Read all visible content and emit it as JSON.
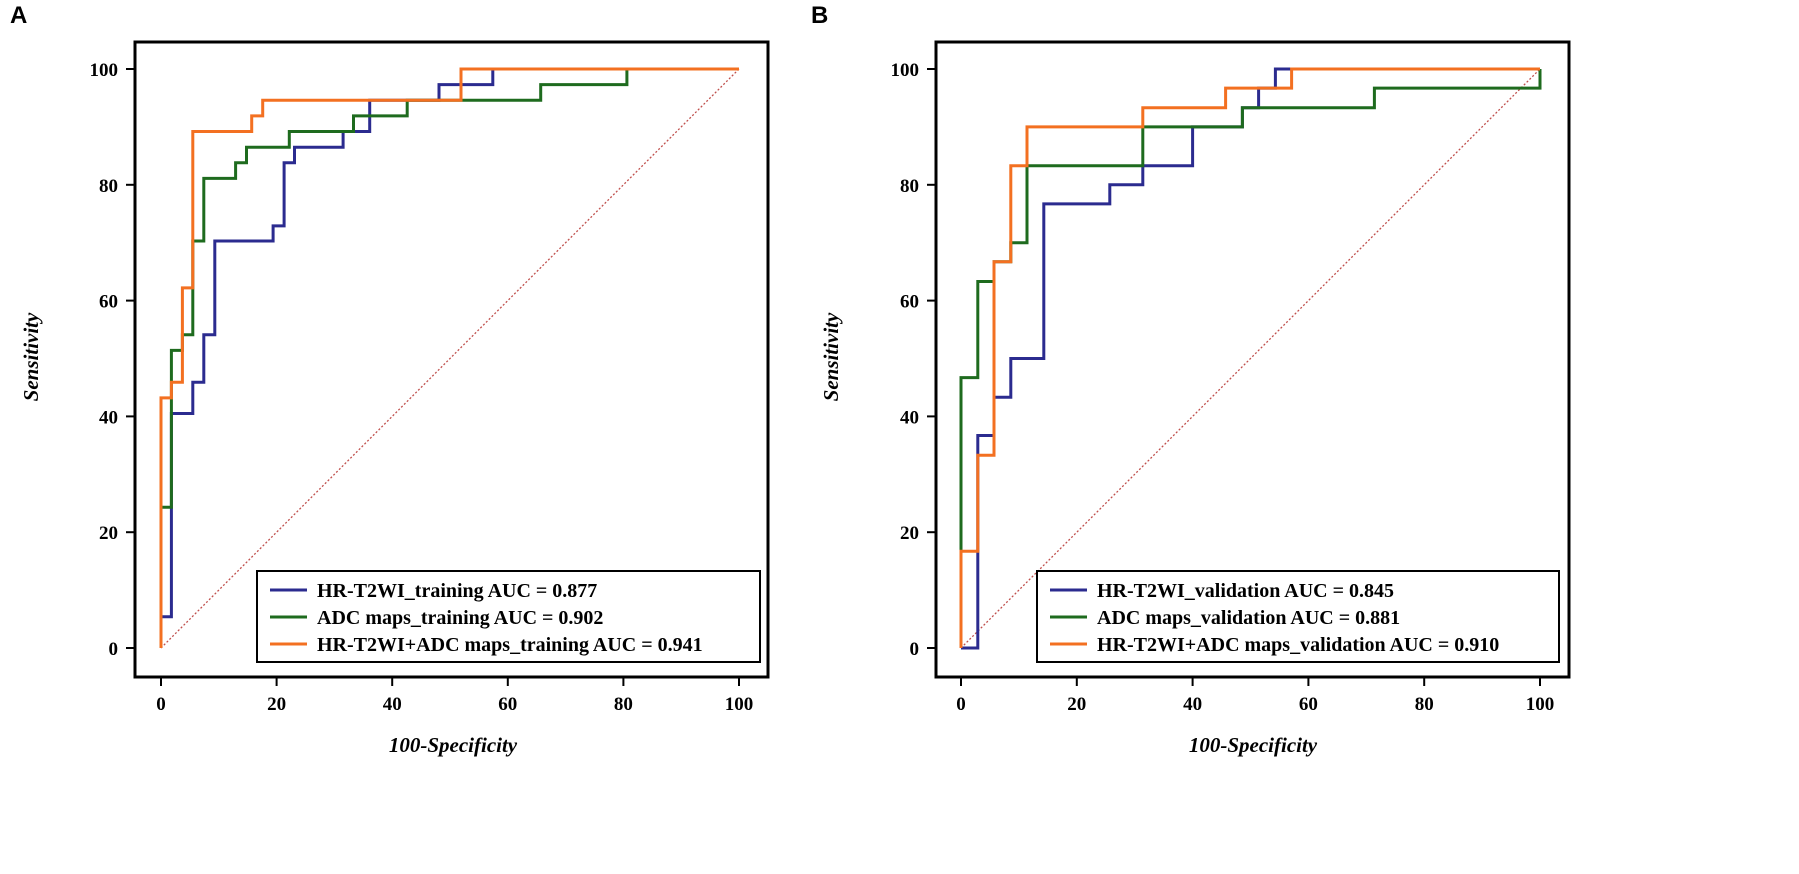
{
  "chart_data": [
    {
      "type": "line",
      "panel_label": "A",
      "xlabel": "100-Specificity",
      "ylabel": "Sensitivity",
      "xlim": [
        0,
        100
      ],
      "ylim": [
        0,
        100
      ],
      "x_ticks": [
        0,
        20,
        40,
        60,
        80,
        100
      ],
      "y_ticks": [
        0,
        20,
        40,
        60,
        80,
        100
      ],
      "legend_position": "bottom-right",
      "reference_line": {
        "style": "dotted",
        "color": "#c0504d",
        "from": [
          0,
          0
        ],
        "to": [
          100,
          100
        ]
      },
      "series": [
        {
          "name": "HR-T2WI_training AUC = 0.877",
          "color": "#2b2b8f",
          "points": [
            [
              0,
              0
            ],
            [
              0,
              5.4
            ],
            [
              1.8,
              5.4
            ],
            [
              1.8,
              40.5
            ],
            [
              5.5,
              40.5
            ],
            [
              5.5,
              45.9
            ],
            [
              7.4,
              45.9
            ],
            [
              7.4,
              54.1
            ],
            [
              9.3,
              54.1
            ],
            [
              9.3,
              70.3
            ],
            [
              19.4,
              70.3
            ],
            [
              19.4,
              72.9
            ],
            [
              21.3,
              72.9
            ],
            [
              21.3,
              83.8
            ],
            [
              23.1,
              83.8
            ],
            [
              23.1,
              86.5
            ],
            [
              31.5,
              86.5
            ],
            [
              31.5,
              89.2
            ],
            [
              36.1,
              89.2
            ],
            [
              36.1,
              94.6
            ],
            [
              48.1,
              94.6
            ],
            [
              48.1,
              97.3
            ],
            [
              57.4,
              97.3
            ],
            [
              57.4,
              100
            ],
            [
              100,
              100
            ]
          ]
        },
        {
          "name": "ADC maps_training AUC = 0.902",
          "color": "#1e6b1e",
          "points": [
            [
              0,
              0
            ],
            [
              0,
              24.3
            ],
            [
              1.8,
              24.3
            ],
            [
              1.8,
              51.4
            ],
            [
              3.7,
              51.4
            ],
            [
              3.7,
              54.1
            ],
            [
              5.5,
              54.1
            ],
            [
              5.5,
              70.3
            ],
            [
              7.4,
              70.3
            ],
            [
              7.4,
              81.1
            ],
            [
              12.9,
              81.1
            ],
            [
              12.9,
              83.8
            ],
            [
              14.8,
              83.8
            ],
            [
              14.8,
              86.5
            ],
            [
              22.2,
              86.5
            ],
            [
              22.2,
              89.2
            ],
            [
              33.3,
              89.2
            ],
            [
              33.3,
              91.9
            ],
            [
              42.6,
              91.9
            ],
            [
              42.6,
              94.6
            ],
            [
              65.7,
              94.6
            ],
            [
              65.7,
              97.3
            ],
            [
              80.6,
              97.3
            ],
            [
              80.6,
              100
            ],
            [
              100,
              100
            ]
          ]
        },
        {
          "name": "HR-T2WI+ADC maps_training AUC = 0.941",
          "color": "#f37021",
          "points": [
            [
              0,
              0
            ],
            [
              0,
              43.2
            ],
            [
              1.8,
              43.2
            ],
            [
              1.8,
              45.9
            ],
            [
              3.7,
              45.9
            ],
            [
              3.7,
              62.2
            ],
            [
              5.5,
              62.2
            ],
            [
              5.5,
              89.2
            ],
            [
              15.7,
              89.2
            ],
            [
              15.7,
              91.9
            ],
            [
              17.6,
              91.9
            ],
            [
              17.6,
              94.6
            ],
            [
              51.9,
              94.6
            ],
            [
              51.9,
              100
            ],
            [
              100,
              100
            ]
          ]
        }
      ]
    },
    {
      "type": "line",
      "panel_label": "B",
      "xlabel": "100-Specificity",
      "ylabel": "Sensitivity",
      "xlim": [
        0,
        100
      ],
      "ylim": [
        0,
        100
      ],
      "x_ticks": [
        0,
        20,
        40,
        60,
        80,
        100
      ],
      "y_ticks": [
        0,
        20,
        40,
        60,
        80,
        100
      ],
      "legend_position": "bottom-right",
      "reference_line": {
        "style": "dotted",
        "color": "#c0504d",
        "from": [
          0,
          0
        ],
        "to": [
          100,
          100
        ]
      },
      "series": [
        {
          "name": "HR-T2WI_validation AUC = 0.845",
          "color": "#2b2b8f",
          "points": [
            [
              0,
              0
            ],
            [
              2.9,
              0
            ],
            [
              2.9,
              36.7
            ],
            [
              5.7,
              36.7
            ],
            [
              5.7,
              43.3
            ],
            [
              8.6,
              43.3
            ],
            [
              8.6,
              50
            ],
            [
              14.3,
              50
            ],
            [
              14.3,
              76.7
            ],
            [
              25.7,
              76.7
            ],
            [
              25.7,
              80
            ],
            [
              31.4,
              80
            ],
            [
              31.4,
              83.3
            ],
            [
              40,
              83.3
            ],
            [
              40,
              90
            ],
            [
              48.6,
              90
            ],
            [
              48.6,
              93.3
            ],
            [
              51.4,
              93.3
            ],
            [
              51.4,
              96.7
            ],
            [
              54.3,
              96.7
            ],
            [
              54.3,
              100
            ],
            [
              100,
              100
            ]
          ]
        },
        {
          "name": "ADC maps_validation AUC = 0.881",
          "color": "#1e6b1e",
          "points": [
            [
              0,
              0
            ],
            [
              0,
              46.7
            ],
            [
              2.9,
              46.7
            ],
            [
              2.9,
              63.3
            ],
            [
              5.7,
              63.3
            ],
            [
              5.7,
              66.7
            ],
            [
              8.6,
              66.7
            ],
            [
              8.6,
              70
            ],
            [
              11.4,
              70
            ],
            [
              11.4,
              83.3
            ],
            [
              31.4,
              83.3
            ],
            [
              31.4,
              90
            ],
            [
              48.6,
              90
            ],
            [
              48.6,
              93.3
            ],
            [
              71.4,
              93.3
            ],
            [
              71.4,
              96.7
            ],
            [
              100,
              96.7
            ],
            [
              100,
              100
            ]
          ]
        },
        {
          "name": "HR-T2WI+ADC maps_validation AUC = 0.910",
          "color": "#f37021",
          "points": [
            [
              0,
              0
            ],
            [
              0,
              16.7
            ],
            [
              2.9,
              16.7
            ],
            [
              2.9,
              33.3
            ],
            [
              5.7,
              33.3
            ],
            [
              5.7,
              66.7
            ],
            [
              8.6,
              66.7
            ],
            [
              8.6,
              83.3
            ],
            [
              11.4,
              83.3
            ],
            [
              11.4,
              90
            ],
            [
              31.4,
              90
            ],
            [
              31.4,
              93.3
            ],
            [
              45.7,
              93.3
            ],
            [
              45.7,
              96.7
            ],
            [
              57.1,
              96.7
            ],
            [
              57.1,
              100
            ],
            [
              100,
              100
            ]
          ]
        }
      ]
    }
  ]
}
